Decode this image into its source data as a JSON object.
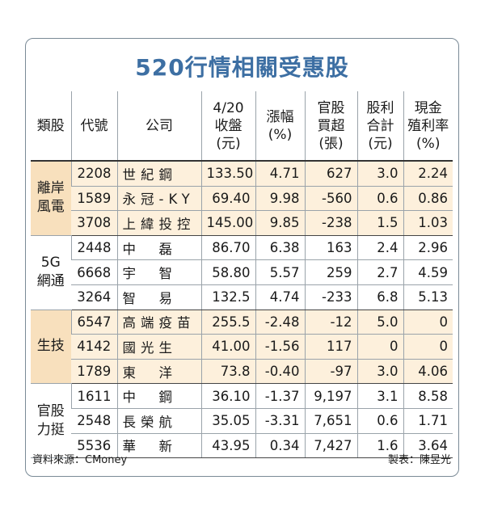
{
  "title": "520行情相關受惠股",
  "headers": {
    "category": "類股",
    "code": "代號",
    "company": "公司",
    "close_l1": "4/20",
    "close_l2": "收盤",
    "close_l3": "(元)",
    "chg_l1": "漲幅",
    "chg_l2": "(%)",
    "buy_l1": "官股",
    "buy_l2": "買超",
    "buy_l3": "(張)",
    "div_l1": "股利",
    "div_l2": "合計",
    "div_l3": "(元)",
    "yield_l1": "現金",
    "yield_l2": "殖利率",
    "yield_l3": "(%)"
  },
  "groups": [
    {
      "name_l1": "離岸",
      "name_l2": "風電",
      "shaded": true,
      "rows": [
        {
          "code": "2208",
          "company": "世紀鋼",
          "close": "133.50",
          "chg": "4.71",
          "buy": "627",
          "div": "3.0",
          "yield": "2.24"
        },
        {
          "code": "1589",
          "company": "永冠-KY",
          "close": "69.40",
          "chg": "9.98",
          "buy": "-560",
          "div": "0.6",
          "yield": "0.86"
        },
        {
          "code": "3708",
          "company": "上緯投控",
          "close": "145.00",
          "chg": "9.85",
          "buy": "-238",
          "div": "1.5",
          "yield": "1.03"
        }
      ]
    },
    {
      "name_l1": "5G",
      "name_l2": "網通",
      "shaded": false,
      "rows": [
        {
          "code": "2448",
          "company": "中　磊",
          "close": "86.70",
          "chg": "6.38",
          "buy": "163",
          "div": "2.4",
          "yield": "2.96"
        },
        {
          "code": "6668",
          "company": "宇　智",
          "close": "58.80",
          "chg": "5.57",
          "buy": "259",
          "div": "2.7",
          "yield": "4.59"
        },
        {
          "code": "3264",
          "company": "智　易",
          "close": "132.5",
          "chg": "4.74",
          "buy": "-233",
          "div": "6.8",
          "yield": "5.13"
        }
      ]
    },
    {
      "name_l1": "生技",
      "name_l2": "",
      "shaded": true,
      "rows": [
        {
          "code": "6547",
          "company": "高端疫苗",
          "close": "255.5",
          "chg": "-2.48",
          "buy": "-12",
          "div": "5.0",
          "yield": "0"
        },
        {
          "code": "4142",
          "company": "國光生",
          "close": "41.00",
          "chg": "-1.56",
          "buy": "117",
          "div": "0",
          "yield": "0"
        },
        {
          "code": "1789",
          "company": "東　洋",
          "close": "73.8",
          "chg": "-0.40",
          "buy": "-97",
          "div": "3.0",
          "yield": "4.06"
        }
      ]
    },
    {
      "name_l1": "官股",
      "name_l2": "力挺",
      "shaded": false,
      "rows": [
        {
          "code": "1611",
          "company": "中　鋼",
          "close": "36.10",
          "chg": "-1.37",
          "buy": "9,197",
          "div": "3.1",
          "yield": "8.58"
        },
        {
          "code": "2548",
          "company": "長榮航",
          "close": "35.05",
          "chg": "-3.31",
          "buy": "7,651",
          "div": "0.6",
          "yield": "1.71"
        },
        {
          "code": "5536",
          "company": "華　新",
          "close": "43.95",
          "chg": "0.34",
          "buy": "7,427",
          "div": "1.6",
          "yield": "3.64"
        }
      ]
    }
  ],
  "footer": {
    "source": "資料來源：CMoney",
    "maker": "製表：陳昱光"
  }
}
